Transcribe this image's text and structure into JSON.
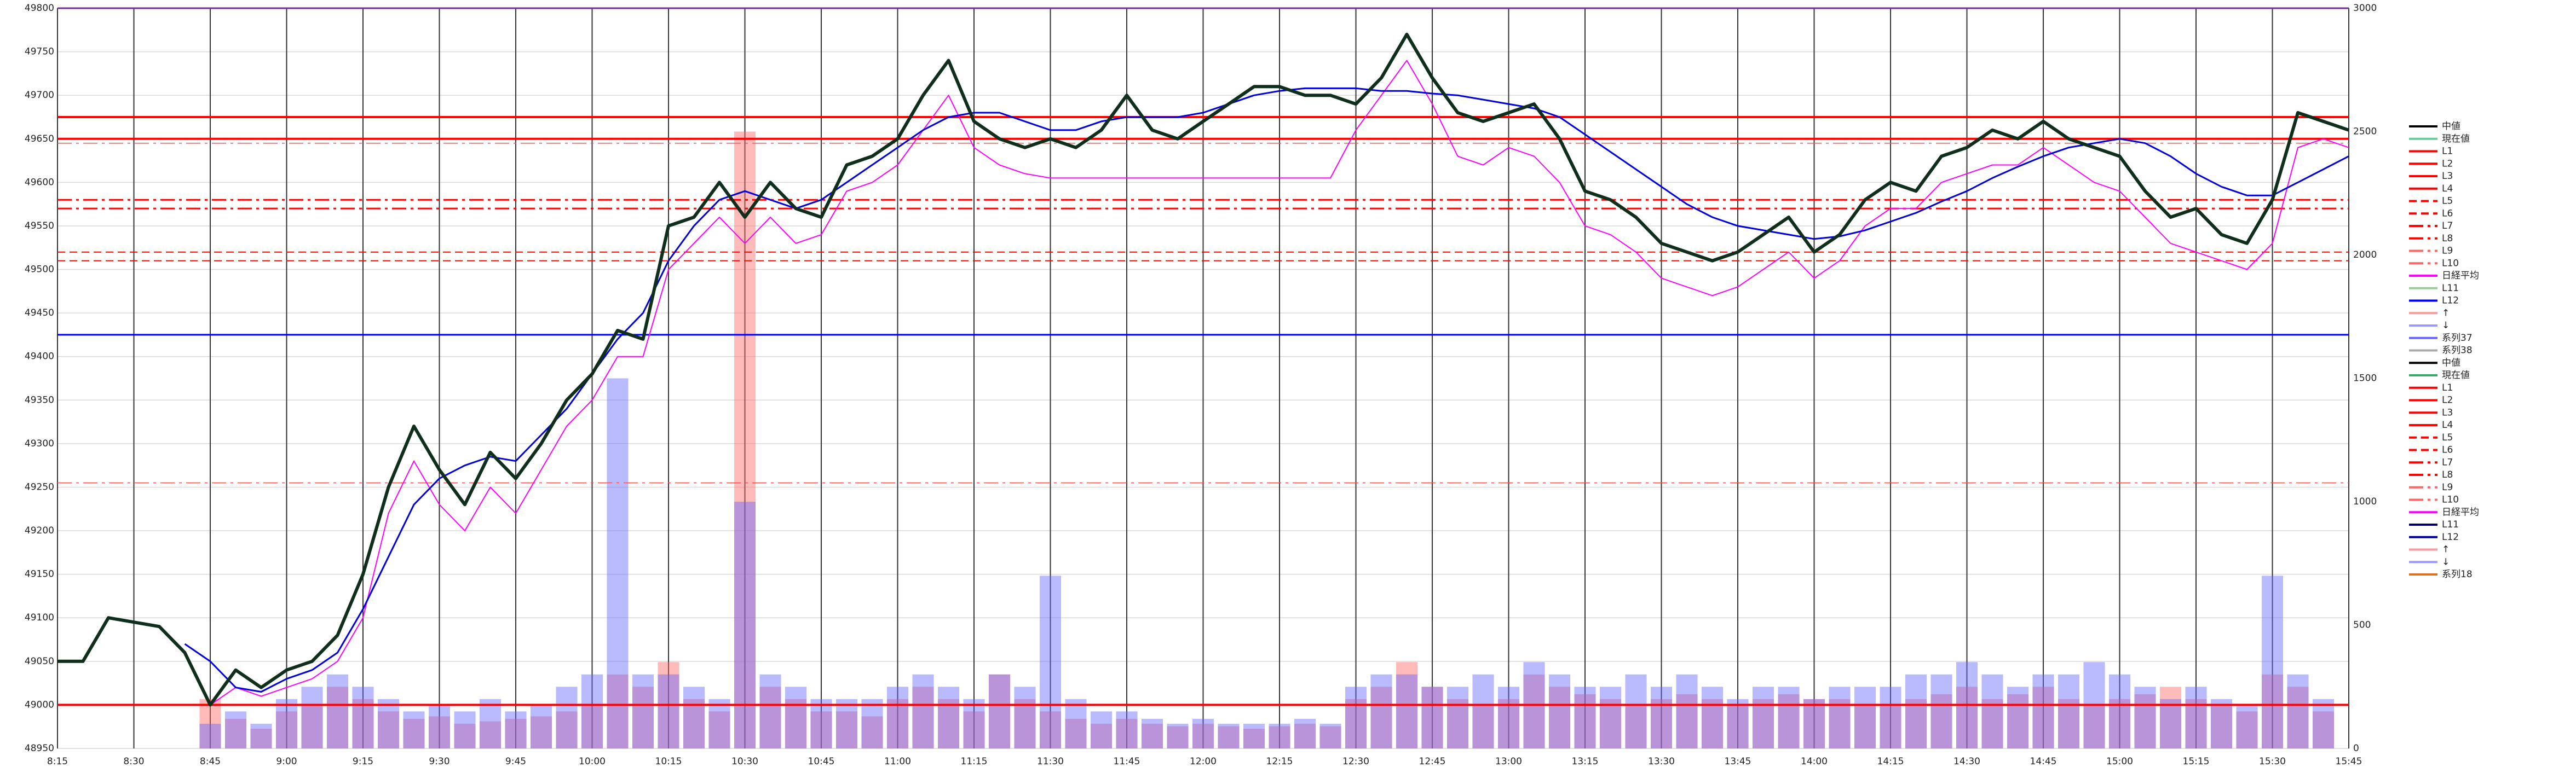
{
  "chart_data": {
    "type": "line",
    "x": [
      495,
      500,
      505,
      510,
      515,
      520,
      525,
      530,
      535,
      540,
      545,
      550,
      555,
      560,
      565,
      570,
      575,
      580,
      585,
      590,
      595,
      600,
      605,
      610,
      615,
      620,
      625,
      630,
      635,
      640,
      645,
      650,
      655,
      660,
      665,
      670,
      675,
      680,
      685,
      690,
      695,
      700,
      705,
      710,
      715,
      720,
      725,
      730,
      735,
      740,
      745,
      750,
      755,
      760,
      765,
      770,
      775,
      780,
      785,
      790,
      795,
      800,
      805,
      810,
      815,
      820,
      825,
      830,
      835,
      840,
      845,
      850,
      855,
      860,
      865,
      870,
      875,
      880,
      885,
      890,
      895,
      900,
      905,
      910,
      915,
      920,
      925,
      930,
      935,
      940,
      945
    ],
    "xlim": [
      495,
      945
    ],
    "xticks": [
      {
        "value": 495,
        "label": "8:15"
      },
      {
        "value": 510,
        "label": "8:30"
      },
      {
        "value": 525,
        "label": "8:45"
      },
      {
        "value": 540,
        "label": "9:00"
      },
      {
        "value": 555,
        "label": "9:15"
      },
      {
        "value": 570,
        "label": "9:30"
      },
      {
        "value": 585,
        "label": "9:45"
      },
      {
        "value": 600,
        "label": "10:00"
      },
      {
        "value": 615,
        "label": "10:15"
      },
      {
        "value": 630,
        "label": "10:30"
      },
      {
        "value": 645,
        "label": "10:45"
      },
      {
        "value": 660,
        "label": "11:00"
      },
      {
        "value": 675,
        "label": "11:15"
      },
      {
        "value": 690,
        "label": "11:30"
      },
      {
        "value": 705,
        "label": "11:45"
      },
      {
        "value": 720,
        "label": "12:00"
      },
      {
        "value": 735,
        "label": "12:15"
      },
      {
        "value": 750,
        "label": "12:30"
      },
      {
        "value": 765,
        "label": "12:45"
      },
      {
        "value": 780,
        "label": "13:00"
      },
      {
        "value": 795,
        "label": "13:15"
      },
      {
        "value": 810,
        "label": "13:30"
      },
      {
        "value": 825,
        "label": "13:45"
      },
      {
        "value": 840,
        "label": "14:00"
      },
      {
        "value": 855,
        "label": "14:15"
      },
      {
        "value": 870,
        "label": "14:30"
      },
      {
        "value": 885,
        "label": "14:45"
      },
      {
        "value": 900,
        "label": "15:00"
      },
      {
        "value": 915,
        "label": "15:15"
      },
      {
        "value": 930,
        "label": "15:30"
      },
      {
        "value": 945,
        "label": "15:45"
      }
    ],
    "ylim": [
      48950,
      49800
    ],
    "yticks": [
      48950,
      49000,
      49050,
      49100,
      49150,
      49200,
      49250,
      49300,
      49350,
      49400,
      49450,
      49500,
      49550,
      49600,
      49650,
      49700,
      49750,
      49800
    ],
    "y2lim": [
      0,
      3000
    ],
    "y2ticks": [
      0,
      500,
      1000,
      1500,
      2000,
      2500,
      3000
    ],
    "grid": true,
    "series": [
      {
        "name": "↑",
        "color": "#ff6666",
        "kind": "bar",
        "axis": "y2",
        "values": [
          0,
          0,
          0,
          0,
          0,
          0,
          200,
          120,
          80,
          150,
          180,
          250,
          200,
          150,
          120,
          130,
          100,
          110,
          120,
          130,
          150,
          180,
          300,
          250,
          350,
          200,
          150,
          2500,
          250,
          200,
          150,
          150,
          130,
          200,
          250,
          200,
          150,
          300,
          200,
          150,
          120,
          100,
          120,
          100,
          90,
          100,
          90,
          80,
          90,
          100,
          90,
          200,
          250,
          350,
          250,
          200,
          180,
          200,
          300,
          250,
          220,
          200,
          180,
          200,
          220,
          200,
          180,
          200,
          220,
          200,
          200,
          180,
          180,
          200,
          220,
          250,
          200,
          220,
          250,
          200,
          180,
          200,
          220,
          250,
          200,
          180,
          150,
          300,
          250,
          150,
          0
        ]
      },
      {
        "name": "↓",
        "color": "#6666ff",
        "kind": "bar",
        "axis": "y2",
        "values": [
          0,
          0,
          0,
          0,
          0,
          0,
          100,
          150,
          100,
          200,
          250,
          300,
          250,
          200,
          150,
          180,
          150,
          200,
          150,
          180,
          250,
          300,
          1500,
          300,
          300,
          250,
          200,
          1000,
          300,
          250,
          200,
          200,
          200,
          250,
          300,
          250,
          200,
          300,
          250,
          700,
          200,
          150,
          150,
          120,
          100,
          120,
          100,
          100,
          100,
          120,
          100,
          250,
          300,
          300,
          250,
          250,
          300,
          250,
          350,
          300,
          250,
          250,
          300,
          250,
          300,
          250,
          200,
          250,
          250,
          200,
          250,
          250,
          250,
          300,
          300,
          350,
          300,
          250,
          300,
          300,
          350,
          300,
          250,
          200,
          250,
          200,
          180,
          700,
          300,
          200,
          0
        ]
      },
      {
        "name": "日経平均",
        "color": "#ff00ff",
        "kind": "line",
        "width": 2,
        "values": [
          null,
          null,
          null,
          null,
          null,
          null,
          49000,
          49020,
          49010,
          49020,
          49030,
          49050,
          49100,
          49220,
          49280,
          49230,
          49200,
          49250,
          49220,
          49270,
          49320,
          49350,
          49400,
          49400,
          49500,
          49530,
          49560,
          49530,
          49560,
          49530,
          49540,
          49590,
          49600,
          49620,
          49660,
          49700,
          49640,
          49620,
          49610,
          49605,
          49605,
          49605,
          49605,
          49605,
          49605,
          49605,
          49605,
          49605,
          49605,
          49605,
          49605,
          49660,
          49700,
          49740,
          49690,
          49630,
          49620,
          49640,
          49630,
          49600,
          49550,
          49540,
          49520,
          49490,
          49480,
          49470,
          49480,
          49500,
          49520,
          49490,
          49510,
          49550,
          49570,
          49570,
          49600,
          49610,
          49620,
          49620,
          49640,
          49620,
          49600,
          49590,
          49560,
          49530,
          49520,
          49510,
          49500,
          49530,
          49640,
          49650,
          49640
        ]
      },
      {
        "name": "系列37",
        "color": "#0000dd",
        "kind": "line",
        "width": 3,
        "values": [
          null,
          null,
          null,
          null,
          null,
          49070,
          49050,
          49020,
          49015,
          49030,
          49040,
          49060,
          49110,
          49170,
          49230,
          49260,
          49275,
          49285,
          49280,
          49310,
          49340,
          49380,
          49420,
          49450,
          49510,
          49550,
          49580,
          49590,
          49580,
          49570,
          49580,
          49600,
          49620,
          49640,
          49660,
          49675,
          49680,
          49680,
          49670,
          49660,
          49660,
          49670,
          49675,
          49675,
          49675,
          49680,
          49690,
          49700,
          49705,
          49708,
          49708,
          49708,
          49705,
          49705,
          49702,
          49700,
          49695,
          49690,
          49685,
          49675,
          49655,
          49635,
          49615,
          49595,
          49575,
          49560,
          49550,
          49545,
          49540,
          49535,
          49538,
          49545,
          49555,
          49565,
          49578,
          49590,
          49605,
          49618,
          49630,
          49640,
          49645,
          49650,
          49645,
          49630,
          49610,
          49595,
          49585,
          49585,
          49600,
          49615,
          49630
        ]
      },
      {
        "name": "中値",
        "color": "#0f2f1c",
        "kind": "line",
        "width": 6,
        "values": [
          49050,
          49050,
          49100,
          49095,
          49090,
          49060,
          49000,
          49040,
          49020,
          49040,
          49050,
          49080,
          49150,
          49250,
          49320,
          49270,
          49230,
          49290,
          49260,
          49300,
          49350,
          49380,
          49430,
          49420,
          49550,
          49560,
          49600,
          49560,
          49600,
          49570,
          49560,
          49620,
          49630,
          49650,
          49700,
          49740,
          49670,
          49650,
          49640,
          49650,
          49640,
          49660,
          49700,
          49660,
          49650,
          49670,
          49690,
          49710,
          49710,
          49700,
          49700,
          49690,
          49720,
          49770,
          49720,
          49680,
          49670,
          49680,
          49690,
          49650,
          49590,
          49580,
          49560,
          49530,
          49520,
          49510,
          49520,
          49540,
          49560,
          49520,
          49540,
          49580,
          49600,
          49590,
          49630,
          49640,
          49660,
          49650,
          49670,
          49650,
          49640,
          49630,
          49590,
          49560,
          49570,
          49540,
          49530,
          49580,
          49680,
          49670,
          49660
        ]
      }
    ],
    "reference_lines": [
      {
        "name": "L1",
        "value": 49675,
        "color": "#ff0000",
        "style": "solid",
        "width": 4
      },
      {
        "name": "L2",
        "value": 49650,
        "color": "#ff0000",
        "style": "solid",
        "width": 4
      },
      {
        "name": "L3",
        "value": 49645,
        "color": "#ff5050",
        "style": "dashdot",
        "width": 1.5
      },
      {
        "name": "L5",
        "value": 49580,
        "color": "#ff0000",
        "style": "dashdot",
        "width": 3
      },
      {
        "name": "L6",
        "value": 49570,
        "color": "#ff0000",
        "style": "dashdot",
        "width": 3
      },
      {
        "name": "L7",
        "value": 49520,
        "color": "#ff0000",
        "style": "dash",
        "width": 2
      },
      {
        "name": "L8",
        "value": 49510,
        "color": "#ff0000",
        "style": "dash",
        "width": 2
      },
      {
        "name": "L12",
        "value": 49425,
        "color": "#0000ff",
        "style": "solid",
        "width": 3
      },
      {
        "name": "L9",
        "value": 49255,
        "color": "#ff5050",
        "style": "dashdot",
        "width": 1.5
      },
      {
        "name": "L4",
        "value": 49000,
        "color": "#ff0000",
        "style": "solid",
        "width": 4
      }
    ],
    "legend": [
      {
        "name": "中値",
        "color": "#000000",
        "style": "solid"
      },
      {
        "name": "現在値",
        "color": "#66cc99",
        "style": "solid"
      },
      {
        "name": "L1",
        "color": "#ff0000",
        "style": "solid"
      },
      {
        "name": "L2",
        "color": "#ff0000",
        "style": "solid"
      },
      {
        "name": "L3",
        "color": "#ff0000",
        "style": "solid"
      },
      {
        "name": "L4",
        "color": "#ff0000",
        "style": "solid"
      },
      {
        "name": "L5",
        "color": "#ff0000",
        "style": "dash"
      },
      {
        "name": "L6",
        "color": "#ff0000",
        "style": "dash"
      },
      {
        "name": "L7",
        "color": "#ff0000",
        "style": "dashdot"
      },
      {
        "name": "L8",
        "color": "#ff0000",
        "style": "dashdot"
      },
      {
        "name": "L9",
        "color": "#ff6666",
        "style": "dashdot"
      },
      {
        "name": "L10",
        "color": "#ff6666",
        "style": "dashdot"
      },
      {
        "name": "日経平均",
        "color": "#ff00ff",
        "style": "solid"
      },
      {
        "name": "L11",
        "color": "#99cc99",
        "style": "solid"
      },
      {
        "name": "L12",
        "color": "#0000ff",
        "style": "solid"
      },
      {
        "name": "↑",
        "color": "#ff9999",
        "style": "solid"
      },
      {
        "name": "↓",
        "color": "#9999ff",
        "style": "solid"
      },
      {
        "name": "系列37",
        "color": "#6666ff",
        "style": "solid"
      },
      {
        "name": "系列38",
        "color": "#aaaaaa",
        "style": "solid"
      },
      {
        "name": "中値",
        "color": "#000000",
        "style": "solid"
      },
      {
        "name": "現在値",
        "color": "#33aa66",
        "style": "solid"
      },
      {
        "name": "L1",
        "color": "#ff0000",
        "style": "solid"
      },
      {
        "name": "L2",
        "color": "#ff0000",
        "style": "solid"
      },
      {
        "name": "L3",
        "color": "#ff0000",
        "style": "solid"
      },
      {
        "name": "L4",
        "color": "#ff0000",
        "style": "solid"
      },
      {
        "name": "L5",
        "color": "#ff0000",
        "style": "dash"
      },
      {
        "name": "L6",
        "color": "#ff0000",
        "style": "dash"
      },
      {
        "name": "L7",
        "color": "#ff0000",
        "style": "dashdot"
      },
      {
        "name": "L8",
        "color": "#ff0000",
        "style": "dashdot"
      },
      {
        "name": "L9",
        "color": "#ff6666",
        "style": "dashdot"
      },
      {
        "name": "L10",
        "color": "#ff6666",
        "style": "dashdot"
      },
      {
        "name": "日経平均",
        "color": "#ff00ff",
        "style": "solid"
      },
      {
        "name": "L11",
        "color": "#000066",
        "style": "solid"
      },
      {
        "name": "L12",
        "color": "#000099",
        "style": "solid"
      },
      {
        "name": "↑",
        "color": "#ff9999",
        "style": "solid"
      },
      {
        "name": "↓",
        "color": "#9999ff",
        "style": "solid"
      },
      {
        "name": "系列18",
        "color": "#e07020",
        "style": "solid"
      }
    ]
  }
}
